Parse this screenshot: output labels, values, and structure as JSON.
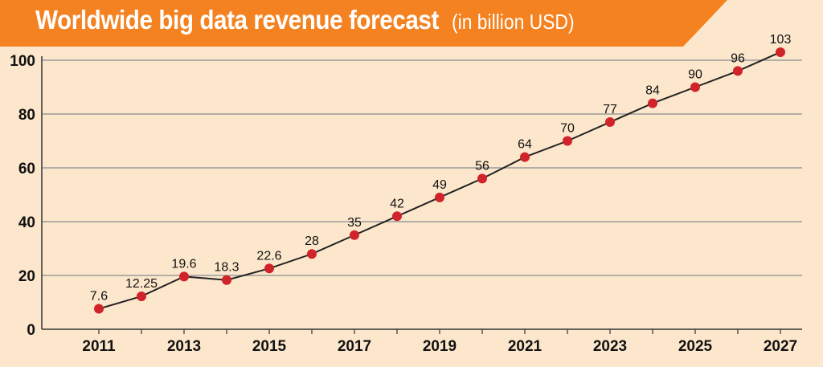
{
  "title": {
    "main": "Worldwide big data revenue forecast",
    "unit": "(in billion USD)"
  },
  "colors": {
    "banner": "#f58220",
    "background": "#fde7cc",
    "grid": "#9a9a9a",
    "line": "#222222",
    "marker": "#d0232a"
  },
  "chart_data": {
    "type": "line",
    "title": "Worldwide big data revenue forecast (in billion USD)",
    "xlabel": "",
    "ylabel": "",
    "x": [
      2011,
      2012,
      2013,
      2014,
      2015,
      2016,
      2017,
      2018,
      2019,
      2020,
      2021,
      2022,
      2023,
      2024,
      2025,
      2026,
      2027
    ],
    "values": [
      7.6,
      12.25,
      19.6,
      18.3,
      22.6,
      28,
      35,
      42,
      49,
      56,
      64,
      70,
      77,
      84,
      90,
      96,
      103
    ],
    "labels": [
      "7.6",
      "12.25",
      "19.6",
      "18.3",
      "22.6",
      "28",
      "35",
      "42",
      "49",
      "56",
      "64",
      "70",
      "77",
      "84",
      "90",
      "96",
      "103"
    ],
    "xticks": [
      "2011",
      "2013",
      "2015",
      "2017",
      "2019",
      "2021",
      "2023",
      "2025",
      "2027"
    ],
    "yticks": [
      "0",
      "20",
      "40",
      "60",
      "80",
      "100"
    ],
    "ylim": [
      0,
      100
    ],
    "grid": true,
    "legend": "none"
  }
}
